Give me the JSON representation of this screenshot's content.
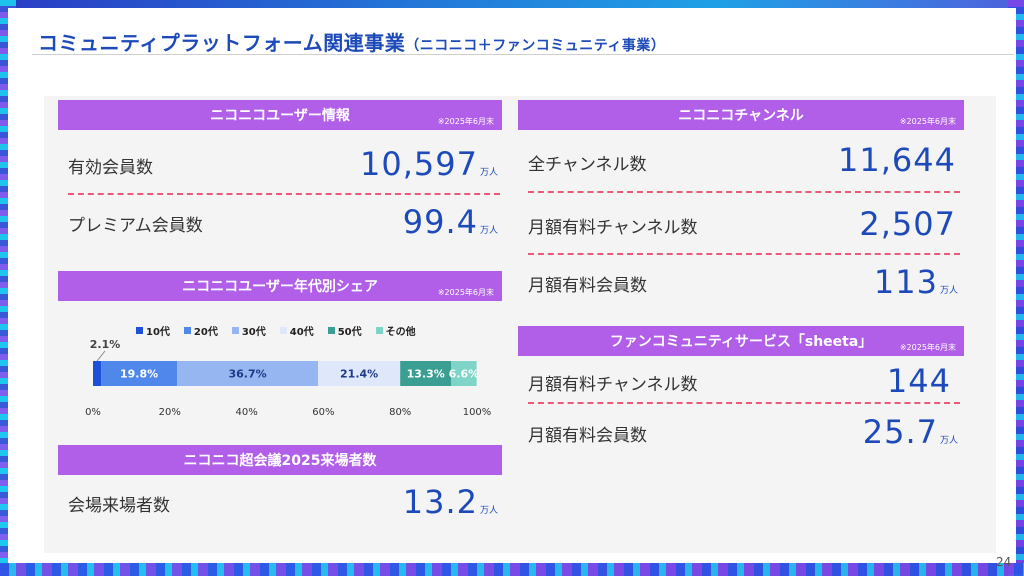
{
  "title": "コミュニティプラットフォーム関連事業",
  "title_sub": "（ニコニコ＋ファンコミュニティ事業）",
  "page_number": "24",
  "colors": {
    "accent": "#1d4ab8",
    "bar": "#b15fe8",
    "dash": "#e8597a"
  },
  "user_info": {
    "header": "ニコニコユーザー情報",
    "note": "※2025年6月末",
    "rows": [
      {
        "label": "有効会員数",
        "value": "10,597",
        "unit": "万人"
      },
      {
        "label": "プレミアム会員数",
        "value": "99.4",
        "unit": "万人"
      }
    ]
  },
  "age_share": {
    "header": "ニコニコユーザー年代別シェア",
    "note": "※2025年6月末"
  },
  "chart_data": {
    "type": "bar",
    "orientation": "horizontal-stacked-100",
    "series": [
      {
        "name": "10代",
        "value": 2.1,
        "label": "2.1%",
        "color": "#1e4fd8"
      },
      {
        "name": "20代",
        "value": 19.8,
        "label": "19.8%",
        "color": "#4f88ea"
      },
      {
        "name": "30代",
        "value": 36.7,
        "label": "36.7%",
        "color": "#95b6f0"
      },
      {
        "name": "40代",
        "value": 21.4,
        "label": "21.4%",
        "color": "#dfe8fb"
      },
      {
        "name": "50代",
        "value": 13.3,
        "label": "13.3%",
        "color": "#3a9e93"
      },
      {
        "name": "その他",
        "value": 6.6,
        "label": "6.6%",
        "color": "#7fd4c8"
      }
    ],
    "xticks": [
      "0%",
      "20%",
      "40%",
      "60%",
      "80%",
      "100%"
    ],
    "xlim": [
      0,
      100
    ],
    "legend": "top"
  },
  "chokaigi": {
    "header": "ニコニコ超会議2025来場者数",
    "rows": [
      {
        "label": "会場来場者数",
        "value": "13.2",
        "unit": "万人"
      }
    ]
  },
  "channel": {
    "header": "ニコニコチャンネル",
    "note": "※2025年6月末",
    "rows": [
      {
        "label": "全チャンネル数",
        "value": "11,644",
        "unit": ""
      },
      {
        "label": "月額有料チャンネル数",
        "value": "2,507",
        "unit": ""
      },
      {
        "label": "月額有料会員数",
        "value": "113",
        "unit": "万人"
      }
    ]
  },
  "sheeta": {
    "header": "ファンコミュニティサービス「sheeta」",
    "note": "※2025年6月末",
    "rows": [
      {
        "label": "月額有料チャンネル数",
        "value": "144",
        "unit": ""
      },
      {
        "label": "月額有料会員数",
        "value": "25.7",
        "unit": "万人"
      }
    ]
  }
}
